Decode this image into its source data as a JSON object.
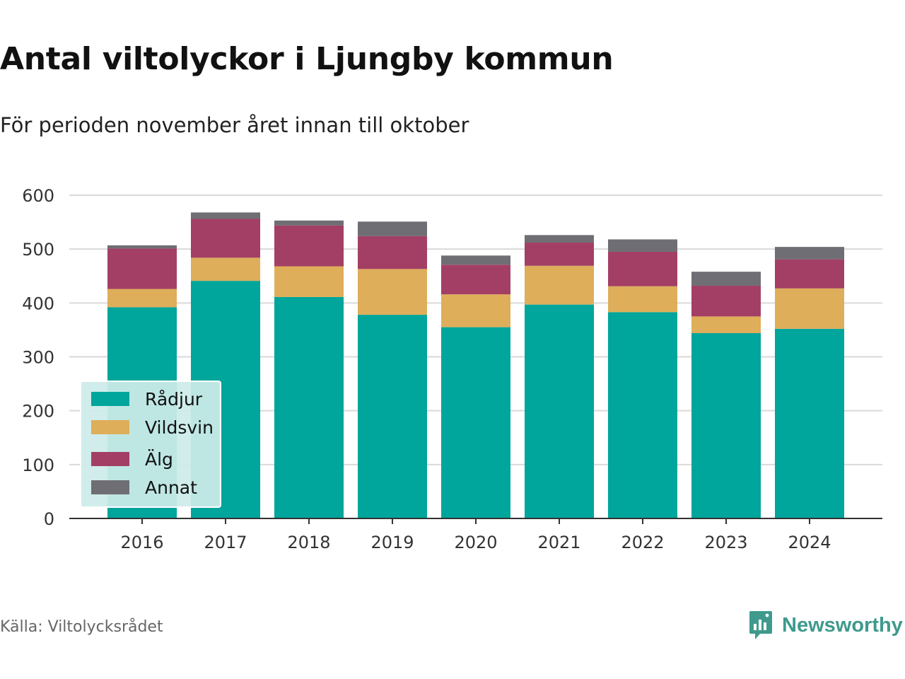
{
  "title": "Antal viltolyckor i Ljungby kommun",
  "subtitle": "För perioden november året innan till oktober",
  "source": "Källa: Viltolycksrådet",
  "brand": {
    "name": "Newsworthy",
    "icon": "newsworthy-logo-icon",
    "color": "#3f9a8d"
  },
  "colors": {
    "Rådjur": "#00a59b",
    "Vildsvin": "#deae5a",
    "Älg": "#a33f65",
    "Annat": "#6f6e74"
  },
  "legend": {
    "items": [
      "Rådjur",
      "Vildsvin",
      "Älg",
      "Annat"
    ],
    "placement": "bottom-left"
  },
  "chart_data": {
    "type": "bar",
    "stacked": true,
    "categories": [
      "2016",
      "2017",
      "2018",
      "2019",
      "2020",
      "2021",
      "2022",
      "2023",
      "2024"
    ],
    "series": [
      {
        "name": "Rådjur",
        "color": "#00a59b",
        "values": [
          392,
          441,
          411,
          378,
          355,
          397,
          383,
          344,
          352
        ]
      },
      {
        "name": "Vildsvin",
        "color": "#deae5a",
        "values": [
          34,
          43,
          57,
          85,
          61,
          72,
          48,
          31,
          75
        ]
      },
      {
        "name": "Älg",
        "color": "#a33f65",
        "values": [
          75,
          72,
          76,
          61,
          55,
          43,
          64,
          57,
          54
        ]
      },
      {
        "name": "Annat",
        "color": "#6f6e74",
        "values": [
          6,
          12,
          9,
          27,
          17,
          14,
          23,
          26,
          23
        ]
      }
    ],
    "ylim": [
      0,
      600
    ],
    "yticks": [
      0,
      100,
      200,
      300,
      400,
      500,
      600
    ],
    "grid": true,
    "xlabel": "",
    "ylabel": ""
  }
}
